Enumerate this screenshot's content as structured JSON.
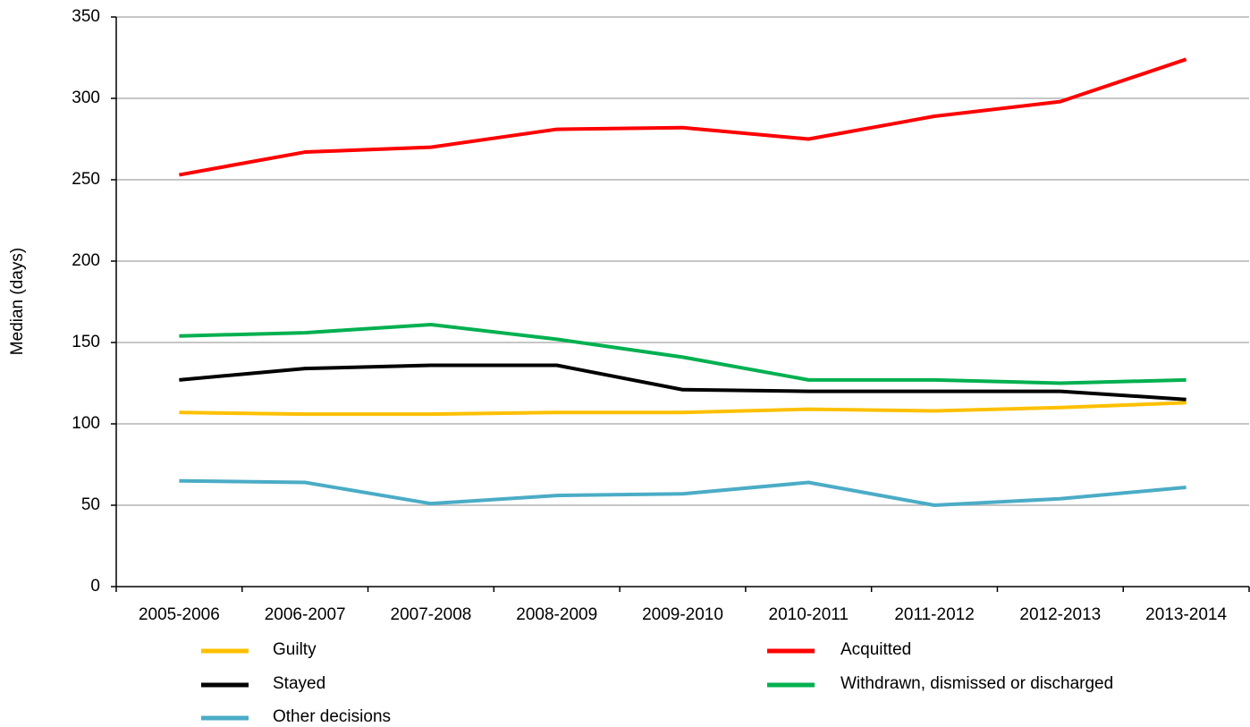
{
  "chart_data": {
    "type": "line",
    "y_label": "Median (days)",
    "categories": [
      "2005-2006",
      "2006-2007",
      "2007-2008",
      "2008-2009",
      "2009-2010",
      "2010-2011",
      "2011-2012",
      "2012-2013",
      "2013-2014"
    ],
    "series": [
      {
        "name": "Guilty",
        "color": "#ffc000",
        "values": [
          107,
          106,
          106,
          107,
          107,
          109,
          108,
          110,
          113
        ]
      },
      {
        "name": "Acquitted",
        "color": "#ff0000",
        "values": [
          253,
          267,
          270,
          281,
          282,
          275,
          289,
          298,
          324
        ]
      },
      {
        "name": "Stayed",
        "color": "#000000",
        "values": [
          127,
          134,
          136,
          136,
          121,
          120,
          120,
          120,
          115
        ]
      },
      {
        "name": "Withdrawn, dismissed or discharged",
        "color": "#00b050",
        "values": [
          154,
          156,
          161,
          152,
          141,
          127,
          127,
          125,
          127
        ]
      },
      {
        "name": "Other decisions",
        "color": "#4bacc6",
        "values": [
          65,
          64,
          51,
          56,
          57,
          64,
          50,
          54,
          61
        ]
      }
    ],
    "ylim": [
      0,
      350
    ],
    "yticks": [
      0,
      50,
      100,
      150,
      200,
      250,
      300,
      350
    ],
    "grid": true
  }
}
